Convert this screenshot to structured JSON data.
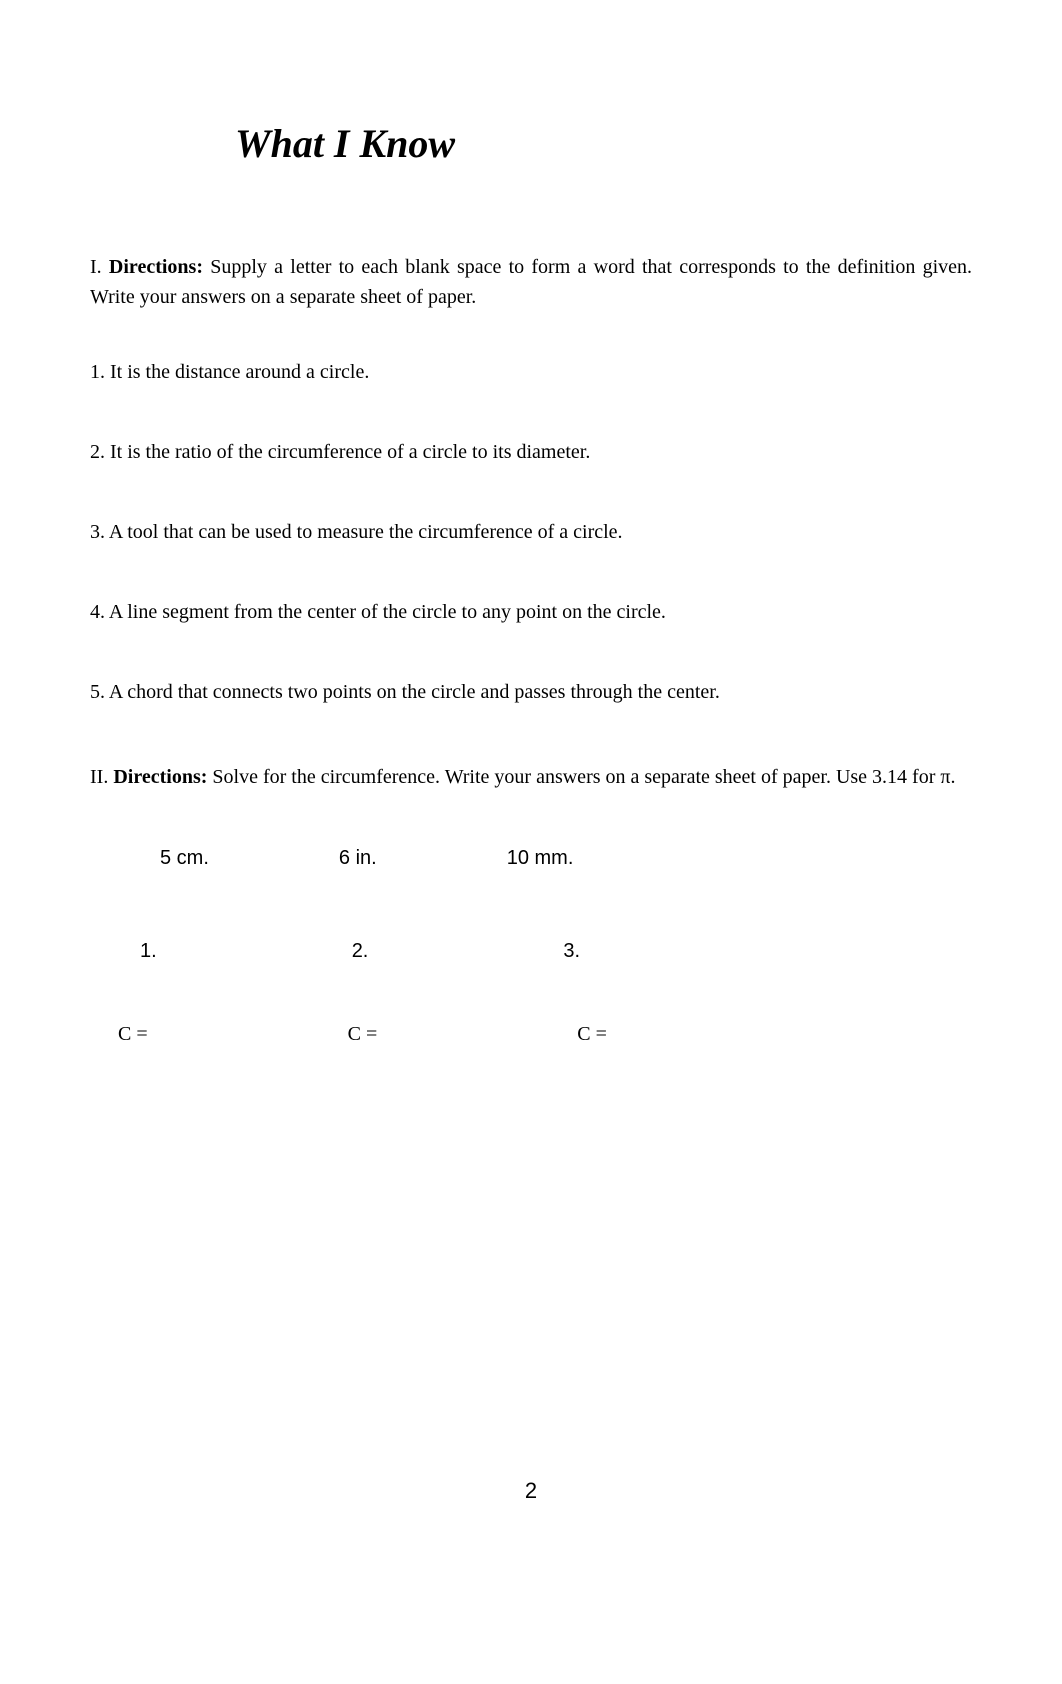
{
  "title": "What I Know",
  "section1": {
    "prefix": "I.",
    "label": "Directions:",
    "text": "Supply a letter to each blank space to form a word that corresponds to the definition given. Write your answers on a separate sheet of paper.",
    "questions": [
      "1.  It is the distance around a circle.",
      "2.  It is the ratio of the circumference of a circle to its diameter.",
      "3.  A tool that can be used to measure the circumference of a circle.",
      "4.  A line segment from the center of the circle to any point on the circle.",
      "5.  A chord that connects two points on the circle and passes through the center."
    ]
  },
  "section2": {
    "prefix": "II.",
    "label": "Directions:",
    "text": "Solve for the circumference. Write your answers on a separate sheet of paper. Use 3.14 for π.",
    "circles": [
      {
        "measure": "5 cm.",
        "number": "1.",
        "c": "C ="
      },
      {
        "measure": "6 in.",
        "number": "2.",
        "c": "C ="
      },
      {
        "measure": "10 mm.",
        "number": "3.",
        "c": "C ="
      }
    ]
  },
  "pageNumber": "2"
}
